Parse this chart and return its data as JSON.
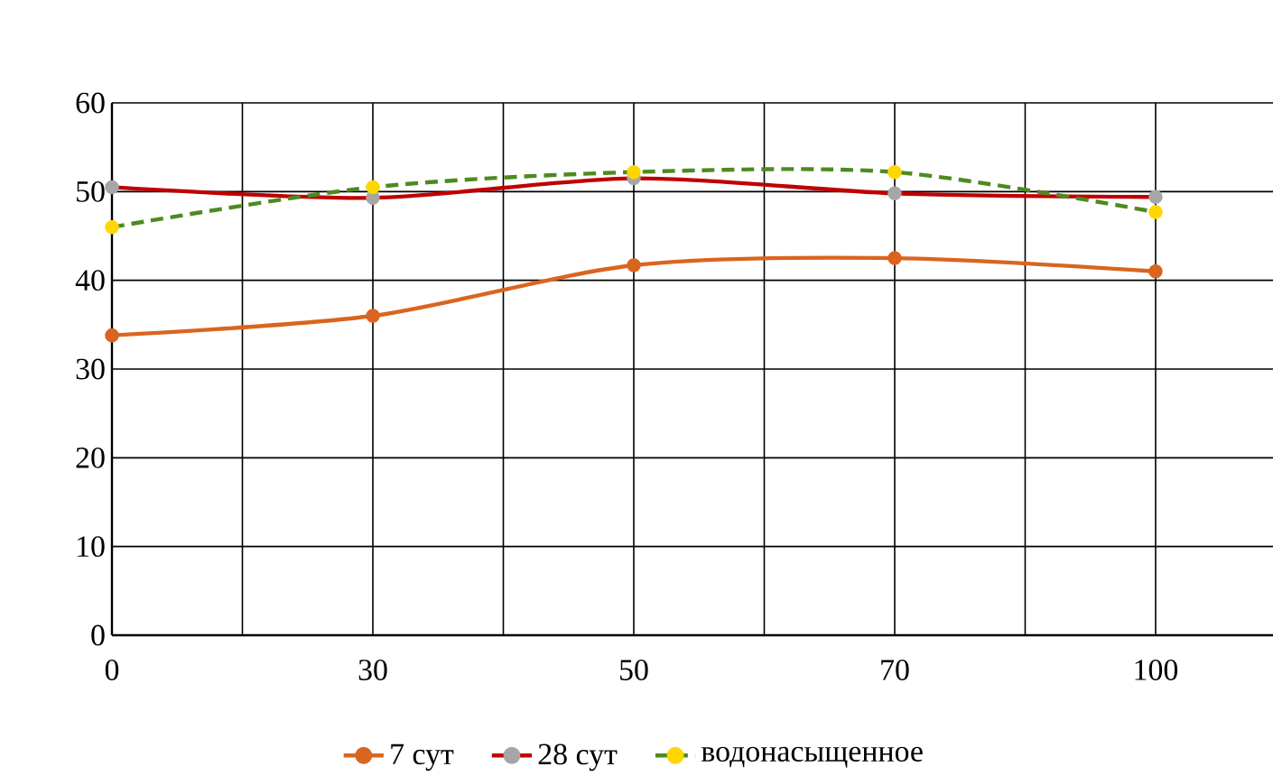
{
  "chart_data": {
    "type": "line",
    "categories": [
      "0",
      "30",
      "50",
      "70",
      "100"
    ],
    "series": [
      {
        "name": "7 сут",
        "color": "#d9651e",
        "values": [
          33.8,
          36,
          41.7,
          42.5,
          41
        ],
        "line_style": "solid"
      },
      {
        "name": "28 сут",
        "color": "#c00000",
        "values": [
          50.5,
          49.3,
          51.5,
          49.8,
          49.4
        ],
        "line_style": "solid"
      },
      {
        "name": "водонасыщенное",
        "color": "#4e8a1f",
        "values": [
          46,
          50.5,
          52.2,
          52.2,
          47.7
        ],
        "line_style": "dashed"
      }
    ],
    "ylim": [
      0,
      60
    ],
    "yticks": [
      0,
      10,
      20,
      30,
      40,
      50,
      60
    ],
    "grid": true,
    "legend": "bottom",
    "marker": "circle"
  }
}
